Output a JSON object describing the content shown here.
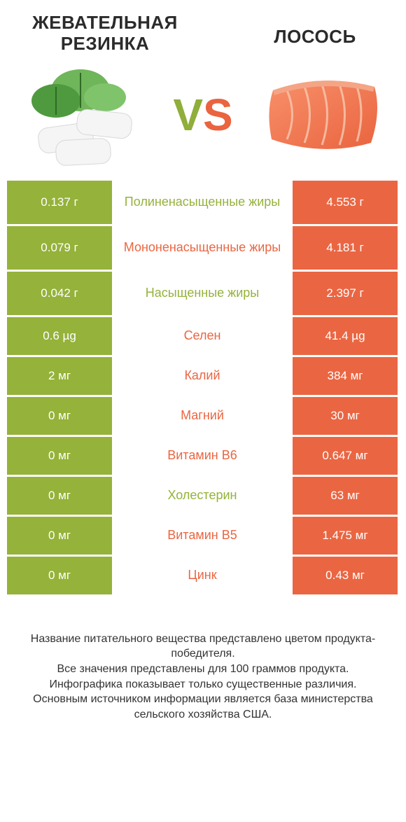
{
  "colors": {
    "green": "#95b23a",
    "orange": "#ea6642",
    "white": "#ffffff",
    "text": "#333333"
  },
  "header": {
    "left_title": "ЖЕВАТЕЛЬНАЯ\nРЕЗИНКА",
    "right_title": "ЛОСОСЬ",
    "vs_v": "V",
    "vs_s": "S"
  },
  "table": {
    "rows": [
      {
        "left": "0.137 г",
        "mid": "Полиненасыщенные жиры",
        "right": "4.553 г",
        "mid_color": "green",
        "tall": true
      },
      {
        "left": "0.079 г",
        "mid": "Мононенасыщенные жиры",
        "right": "4.181 г",
        "mid_color": "orange",
        "tall": true
      },
      {
        "left": "0.042 г",
        "mid": "Насыщенные жиры",
        "right": "2.397 г",
        "mid_color": "green",
        "tall": true
      },
      {
        "left": "0.6 µg",
        "mid": "Селен",
        "right": "41.4 µg",
        "mid_color": "orange",
        "tall": false
      },
      {
        "left": "2 мг",
        "mid": "Калий",
        "right": "384 мг",
        "mid_color": "orange",
        "tall": false
      },
      {
        "left": "0 мг",
        "mid": "Магний",
        "right": "30 мг",
        "mid_color": "orange",
        "tall": false
      },
      {
        "left": "0 мг",
        "mid": "Витамин B6",
        "right": "0.647 мг",
        "mid_color": "orange",
        "tall": false
      },
      {
        "left": "0 мг",
        "mid": "Холестерин",
        "right": "63 мг",
        "mid_color": "green",
        "tall": false
      },
      {
        "left": "0 мг",
        "mid": "Витамин B5",
        "right": "1.475 мг",
        "mid_color": "orange",
        "tall": false
      },
      {
        "left": "0 мг",
        "mid": "Цинк",
        "right": "0.43 мг",
        "mid_color": "orange",
        "tall": false
      }
    ]
  },
  "footer": {
    "line1": "Название питательного вещества представлено цветом продукта-победителя.",
    "line2": "Все значения представлены для 100 граммов продукта.",
    "line3": "Инфографика показывает только существенные различия.",
    "line4": "Основным источником информации является база министерства сельского хозяйства США."
  }
}
